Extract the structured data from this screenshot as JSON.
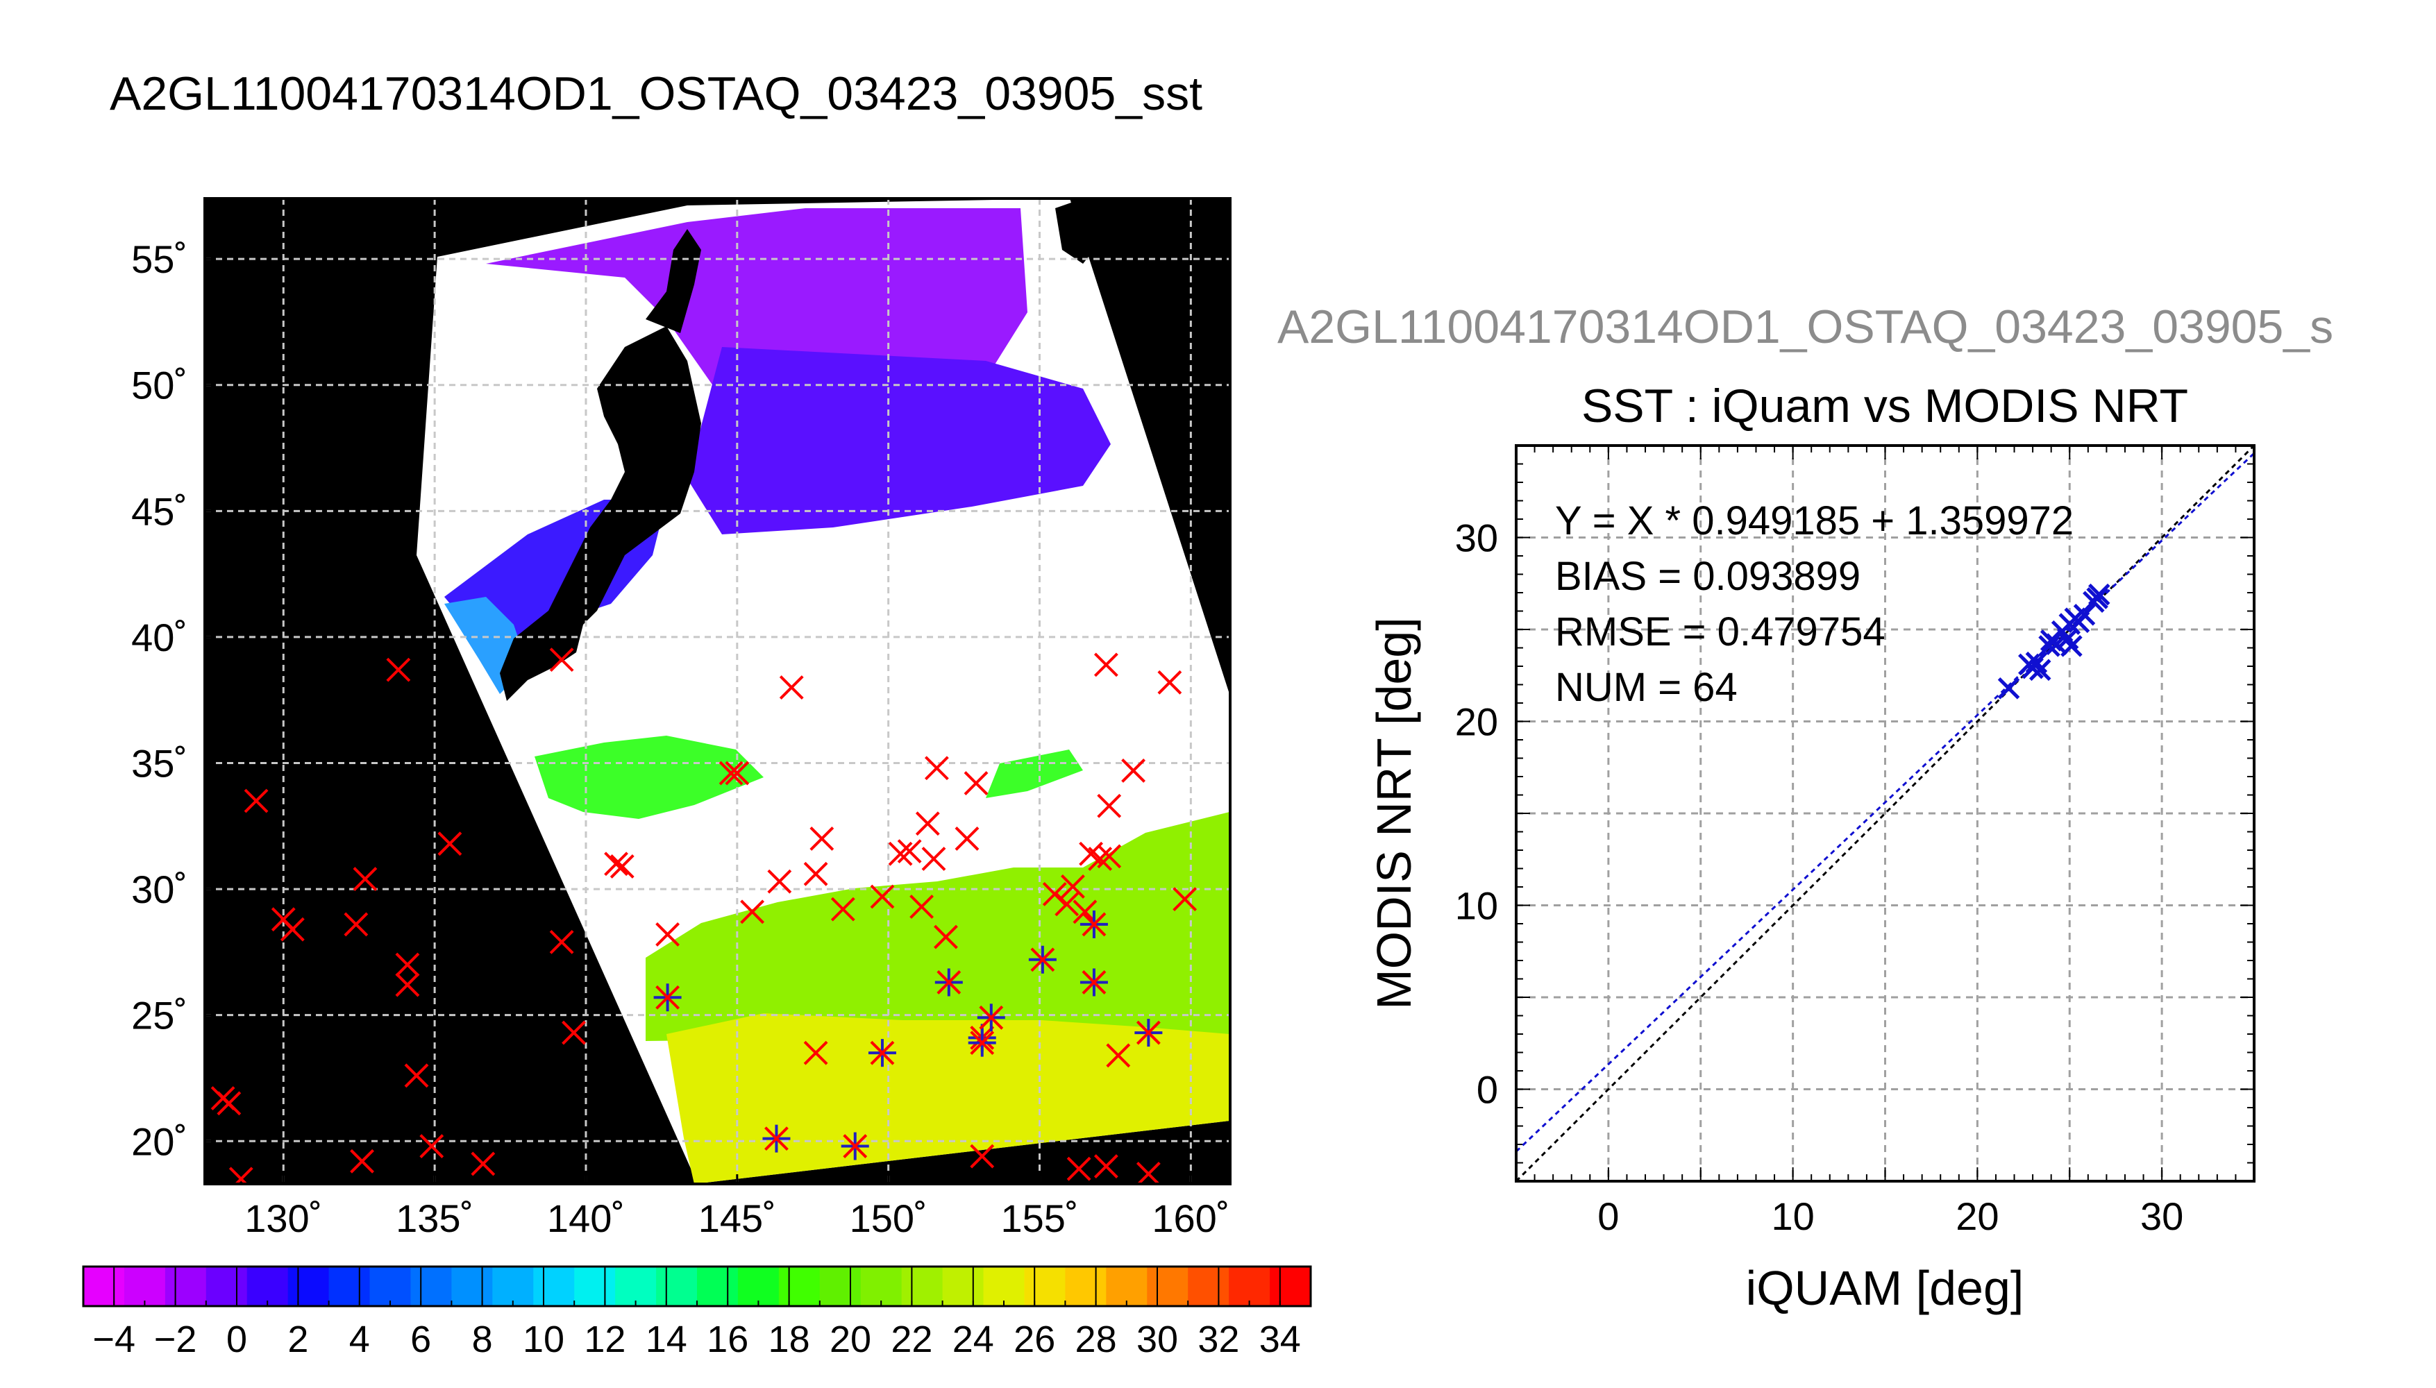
{
  "header": {
    "title": "A2GL11004170314OD1_OSTAQ_03423_03905_sst",
    "subtitle": "A2GL11004170314OD1_OSTAQ_03423_03905_s"
  },
  "chart_data": [
    {
      "type": "map",
      "x_ticks": [
        "130˚",
        "135˚",
        "140˚",
        "145˚",
        "150˚",
        "155˚",
        "160˚"
      ],
      "y_ticks": [
        "20˚",
        "25˚",
        "30˚",
        "35˚",
        "40˚",
        "45˚",
        "50˚",
        "55˚"
      ],
      "lon_range": [
        127.4,
        161.3
      ],
      "lat_range": [
        18.3,
        57.4
      ],
      "grid": true,
      "colorbar": {
        "min": -5,
        "max": 35,
        "step": 1,
        "labels": [
          "−4",
          "−2",
          "0",
          "2",
          "4",
          "6",
          "8",
          "10",
          "12",
          "14",
          "16",
          "18",
          "20",
          "22",
          "24",
          "26",
          "28",
          "30",
          "32",
          "34"
        ],
        "label_values": [
          -4,
          -2,
          0,
          2,
          4,
          6,
          8,
          10,
          12,
          14,
          16,
          18,
          20,
          22,
          24,
          26,
          28,
          30,
          32,
          34
        ],
        "colors": [
          "#e600ff",
          "#cc00ff",
          "#9c00ff",
          "#6b00ff",
          "#3a00ff",
          "#0b0bff",
          "#0030ff",
          "#0050ff",
          "#0070ff",
          "#0090ff",
          "#00b0ff",
          "#00d2ff",
          "#00f0f0",
          "#00ffc0",
          "#00ff90",
          "#00ff55",
          "#10ff20",
          "#40ff00",
          "#60f000",
          "#80f000",
          "#a0f000",
          "#c0f000",
          "#e0f000",
          "#f5e000",
          "#ffc800",
          "#ffa000",
          "#ff7800",
          "#ff5000",
          "#ff2800",
          "#ff0000"
        ]
      },
      "sst_regions": [
        {
          "name": "cold-purple",
          "value": -3,
          "color": "#9a1aff"
        },
        {
          "name": "cold-blue",
          "value": 2,
          "color": "#5a10ff"
        },
        {
          "name": "temperate-green",
          "value": 19,
          "color": "#3cff28"
        },
        {
          "name": "warm-green",
          "value": 23,
          "color": "#90f000"
        },
        {
          "name": "tropical-yellow",
          "value": 27,
          "color": "#e0f000"
        }
      ],
      "buoys_red": [
        [
          128.2,
          21.5
        ],
        [
          128.6,
          18.5
        ],
        [
          129.1,
          33.5
        ],
        [
          130.0,
          28.8
        ],
        [
          130.3,
          28.4
        ],
        [
          132.4,
          28.6
        ],
        [
          132.7,
          30.4
        ],
        [
          132.6,
          19.2
        ],
        [
          133.8,
          38.7
        ],
        [
          134.1,
          27.0
        ],
        [
          134.1,
          26.2
        ],
        [
          134.4,
          22.6
        ],
        [
          134.9,
          19.8
        ],
        [
          135.5,
          31.8
        ],
        [
          136.6,
          19.1
        ],
        [
          139.2,
          27.9
        ],
        [
          139.6,
          24.3
        ],
        [
          139.2,
          39.1
        ],
        [
          141.0,
          31.0
        ],
        [
          141.2,
          30.9
        ],
        [
          142.7,
          28.2
        ],
        [
          144.8,
          34.6
        ],
        [
          145.0,
          34.6
        ],
        [
          145.5,
          29.1
        ],
        [
          146.4,
          30.3
        ],
        [
          146.8,
          38.0
        ],
        [
          147.6,
          30.6
        ],
        [
          147.6,
          23.5
        ],
        [
          147.8,
          32.0
        ],
        [
          148.5,
          29.2
        ],
        [
          149.8,
          29.7
        ],
        [
          150.4,
          31.4
        ],
        [
          150.7,
          31.5
        ],
        [
          151.1,
          29.3
        ],
        [
          151.3,
          32.6
        ],
        [
          151.6,
          34.8
        ],
        [
          151.5,
          31.2
        ],
        [
          151.9,
          28.1
        ],
        [
          152.6,
          32.0
        ],
        [
          152.9,
          34.2
        ],
        [
          153.1,
          19.4
        ],
        [
          155.5,
          29.8
        ],
        [
          155.9,
          29.4
        ],
        [
          156.1,
          30.1
        ],
        [
          156.5,
          29.1
        ],
        [
          156.7,
          31.4
        ],
        [
          157.0,
          31.2
        ],
        [
          157.3,
          33.3
        ],
        [
          157.3,
          31.3
        ],
        [
          157.2,
          38.9
        ],
        [
          157.6,
          23.4
        ],
        [
          158.1,
          34.7
        ],
        [
          158.6,
          18.7
        ],
        [
          159.3,
          38.2
        ],
        [
          159.8,
          29.6
        ],
        [
          156.3,
          18.9
        ],
        [
          157.2,
          19.0
        ],
        [
          128.0,
          21.7
        ]
      ],
      "buoys_blue": [
        [
          142.7,
          25.7
        ],
        [
          146.3,
          20.1
        ],
        [
          148.9,
          19.8
        ],
        [
          149.8,
          23.5
        ],
        [
          152.0,
          26.3
        ],
        [
          153.1,
          24.1
        ],
        [
          153.4,
          24.9
        ],
        [
          155.1,
          27.2
        ],
        [
          156.8,
          26.3
        ],
        [
          156.8,
          28.6
        ],
        [
          158.6,
          24.3
        ],
        [
          153.1,
          23.9
        ]
      ]
    },
    {
      "type": "scatter",
      "title": "SST : iQuam vs MODIS NRT",
      "xlabel": "iQUAM [deg]",
      "ylabel": "MODIS NRT [deg]",
      "xlim": [
        -5,
        35
      ],
      "ylim": [
        -5,
        35
      ],
      "x_ticks": [
        0,
        10,
        20,
        30
      ],
      "y_ticks": [
        0,
        10,
        20,
        30
      ],
      "grid": true,
      "annotations": [
        "Y = X * 0.949185 + 1.359972",
        "BIAS = 0.093899",
        "RMSE = 0.479754",
        "NUM = 64"
      ],
      "fit": {
        "slope": 0.949185,
        "intercept": 1.359972
      },
      "points": [
        [
          21.7,
          21.8
        ],
        [
          22.8,
          23.1
        ],
        [
          23.0,
          22.9
        ],
        [
          23.2,
          23.2
        ],
        [
          23.4,
          22.8
        ],
        [
          23.9,
          24.1
        ],
        [
          24.0,
          24.4
        ],
        [
          24.3,
          24.2
        ],
        [
          24.6,
          24.9
        ],
        [
          24.9,
          24.5
        ],
        [
          25.0,
          25.3
        ],
        [
          25.1,
          24.1
        ],
        [
          25.3,
          25.6
        ],
        [
          25.5,
          25.4
        ],
        [
          25.8,
          25.8
        ],
        [
          26.5,
          26.7
        ],
        [
          26.6,
          26.9
        ],
        [
          26.3,
          26.5
        ]
      ]
    }
  ]
}
